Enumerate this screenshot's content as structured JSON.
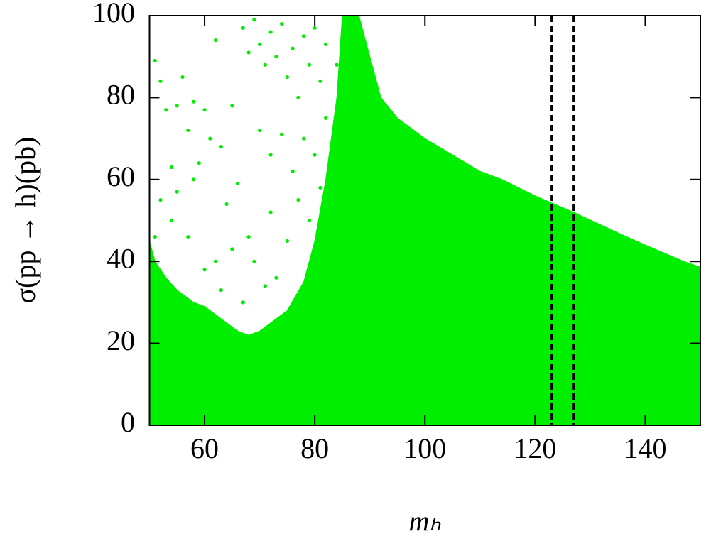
{
  "chart_data": {
    "type": "scatter",
    "x_label": "mₕ",
    "y_label": "σ(pp → h)(pb)",
    "xlim": [
      50,
      150
    ],
    "ylim": [
      0,
      100
    ],
    "xticks": [
      60,
      80,
      100,
      120,
      140
    ],
    "yticks": [
      0,
      20,
      40,
      60,
      80,
      100
    ],
    "vlines": [
      123,
      127
    ],
    "vline_color": "#000000",
    "series": [
      {
        "type": "area",
        "color": "#00ee00",
        "x": [
          50,
          51,
          53,
          55,
          58,
          60,
          62,
          64,
          66,
          68,
          70,
          72,
          75,
          78,
          80,
          82,
          84,
          85,
          88,
          90,
          92,
          95,
          100,
          105,
          110,
          114,
          120,
          127,
          135,
          140,
          147,
          150
        ],
        "values": [
          45,
          40,
          36,
          33,
          30,
          29,
          27,
          25,
          23,
          22,
          23,
          25,
          28,
          35,
          45,
          60,
          80,
          100,
          100,
          90,
          80,
          75,
          70,
          66,
          62,
          60,
          56,
          52,
          47,
          44,
          40,
          38.6
        ]
      },
      {
        "type": "scatter",
        "color": "#00ee00",
        "x": [
          51,
          52,
          53,
          55,
          56,
          58,
          60,
          62,
          61,
          57,
          54,
          59,
          63,
          65,
          67,
          68,
          69,
          70,
          71,
          72,
          73,
          74,
          75,
          76,
          77,
          78,
          79,
          80,
          81,
          82,
          66,
          64,
          58,
          55,
          52,
          70,
          72,
          74,
          76,
          78,
          80,
          82,
          68,
          65,
          62,
          60,
          72,
          75,
          77,
          79,
          81,
          83,
          84,
          85,
          86,
          69,
          71,
          73,
          67,
          63,
          57,
          54,
          51
        ],
        "values": [
          89,
          84,
          77,
          78,
          85,
          79,
          77,
          94,
          70,
          72,
          63,
          64,
          68,
          78,
          97,
          91,
          99,
          93,
          88,
          96,
          90,
          98,
          85,
          92,
          80,
          95,
          88,
          97,
          84,
          93,
          59,
          54,
          60,
          57,
          55,
          72,
          66,
          71,
          62,
          70,
          66,
          75,
          46,
          43,
          40,
          38,
          52,
          45,
          55,
          50,
          58,
          68,
          88,
          95,
          99,
          40,
          34,
          36,
          30,
          33,
          46,
          50,
          46
        ]
      }
    ]
  }
}
